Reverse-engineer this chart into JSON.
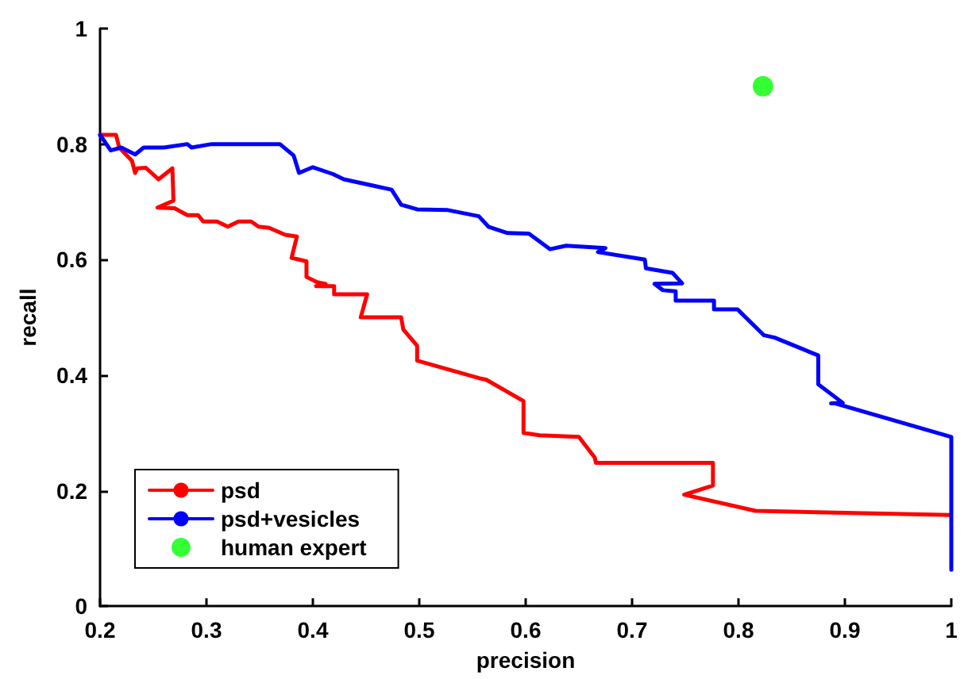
{
  "chart_data": {
    "type": "line",
    "xlabel": "precision",
    "ylabel": "recall",
    "xlim": [
      0.2,
      1
    ],
    "ylim": [
      0,
      1
    ],
    "xticks": [
      0.2,
      0.3,
      0.4,
      0.5,
      0.6,
      0.7,
      0.8,
      0.9,
      1
    ],
    "yticks": [
      0,
      0.2,
      0.4,
      0.6,
      0.8,
      1
    ],
    "grid": false,
    "legend": "bottom left",
    "line_style": "solid",
    "series": [
      {
        "name": "psd",
        "color": "#ff0000",
        "marker": "none",
        "x": [
          0.2,
          0.215,
          0.218,
          0.23,
          0.233,
          0.235,
          0.243,
          0.255,
          0.268,
          0.269,
          0.254,
          0.27,
          0.282,
          0.292,
          0.297,
          0.31,
          0.32,
          0.33,
          0.342,
          0.349,
          0.359,
          0.374,
          0.385,
          0.38,
          0.387,
          0.394,
          0.394,
          0.404,
          0.412,
          0.403,
          0.42,
          0.42,
          0.451,
          0.445,
          0.483,
          0.485,
          0.498,
          0.498,
          0.558,
          0.563,
          0.598,
          0.598,
          0.613,
          0.65,
          0.665,
          0.666,
          0.776,
          0.776,
          0.749,
          0.816,
          0.999
        ],
        "values": [
          0.816,
          0.816,
          0.794,
          0.771,
          0.75,
          0.758,
          0.759,
          0.739,
          0.758,
          0.702,
          0.69,
          0.689,
          0.677,
          0.677,
          0.666,
          0.666,
          0.657,
          0.666,
          0.666,
          0.657,
          0.655,
          0.643,
          0.64,
          0.603,
          0.6,
          0.597,
          0.57,
          0.561,
          0.558,
          0.554,
          0.554,
          0.54,
          0.54,
          0.5,
          0.5,
          0.479,
          0.451,
          0.425,
          0.394,
          0.392,
          0.355,
          0.3,
          0.296,
          0.293,
          0.257,
          0.248,
          0.248,
          0.209,
          0.193,
          0.165,
          0.158
        ]
      },
      {
        "name": "psd+vesicles",
        "color": "#0000ff",
        "marker": "none",
        "x": [
          0.2,
          0.21,
          0.22,
          0.233,
          0.241,
          0.26,
          0.282,
          0.286,
          0.305,
          0.369,
          0.382,
          0.387,
          0.4,
          0.419,
          0.429,
          0.459,
          0.474,
          0.483,
          0.498,
          0.526,
          0.556,
          0.565,
          0.583,
          0.603,
          0.623,
          0.638,
          0.675,
          0.668,
          0.712,
          0.713,
          0.738,
          0.747,
          0.721,
          0.729,
          0.741,
          0.741,
          0.777,
          0.777,
          0.799,
          0.824,
          0.834,
          0.875,
          0.875,
          0.898,
          0.887,
          0.891,
          1.0,
          1.0
        ],
        "values": [
          0.816,
          0.789,
          0.794,
          0.782,
          0.794,
          0.794,
          0.8,
          0.794,
          0.8,
          0.8,
          0.78,
          0.75,
          0.76,
          0.748,
          0.739,
          0.727,
          0.721,
          0.695,
          0.687,
          0.686,
          0.675,
          0.657,
          0.646,
          0.645,
          0.618,
          0.624,
          0.62,
          0.613,
          0.6,
          0.585,
          0.577,
          0.559,
          0.558,
          0.547,
          0.545,
          0.529,
          0.529,
          0.514,
          0.514,
          0.469,
          0.465,
          0.434,
          0.384,
          0.352,
          0.351,
          0.351,
          0.293,
          0.063
        ]
      },
      {
        "name": "human expert",
        "type": "scatter",
        "color": "#00ff00",
        "marker": "circle",
        "x": [
          0.823
        ],
        "values": [
          0.9
        ]
      }
    ]
  }
}
